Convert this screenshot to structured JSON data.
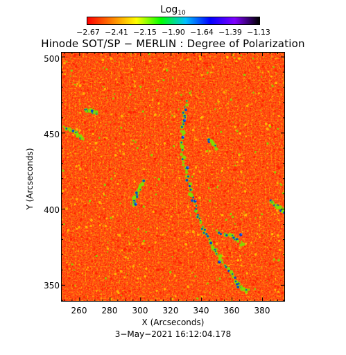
{
  "colorbar": {
    "title": "Log",
    "title_subscript": "10",
    "ticks": [
      "−2.67",
      "−2.41",
      "−2.15",
      "−1.90",
      "−1.64",
      "−1.39",
      "−1.13"
    ],
    "colors": [
      "#ff0000",
      "#ff7f00",
      "#ffff00",
      "#00ff00",
      "#00c0ff",
      "#0000ff",
      "#7f00ff",
      "#000000"
    ]
  },
  "title": "Hinode SOT/SP − MERLIN : Degree of Polarization",
  "x_axis": {
    "label": "X (Arcseconds)",
    "ticks": [
      "260",
      "280",
      "300",
      "320",
      "340",
      "360",
      "380"
    ],
    "range": [
      248,
      395
    ]
  },
  "y_axis": {
    "label": "Y (Arcseconds)",
    "ticks": [
      "350",
      "400",
      "450",
      "500"
    ],
    "range": [
      339,
      503
    ]
  },
  "timestamp": "3−May−2021 16:12:04.178",
  "map": {
    "description_colors": {
      "background": "#ff5a14",
      "low": "#ff1a00",
      "mid": "#ffb400",
      "high": "#7ee000",
      "peak": "#0a3cd2"
    }
  }
}
